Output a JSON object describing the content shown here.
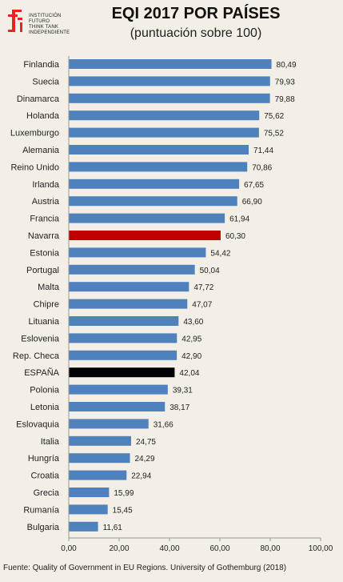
{
  "logo": {
    "text": "INSTITUCIÓN\nFUTURO\nTHINK TANK\nINDEPENDIENTE",
    "color": "#e5251e"
  },
  "header": {
    "title": "EQI 2017  POR PAÍSES",
    "subtitle": "(puntuación sobre 100)"
  },
  "footer": {
    "source": "Fuente: Quality of Government in EU Regions. University of Gothemburg (2018)"
  },
  "chart_data": {
    "type": "bar",
    "orientation": "horizontal",
    "title": "EQI 2017  POR PAÍSES",
    "subtitle": "(puntuación sobre 100)",
    "categories": [
      "Finlandia",
      "Suecia",
      "Dinamarca",
      "Holanda",
      "Luxemburgo",
      "Alemania",
      "Reino Unido",
      "Irlanda",
      "Austria",
      "Francia",
      "Navarra",
      "Estonia",
      "Portugal",
      "Malta",
      "Chipre",
      "Lituania",
      "Eslovenia",
      "Rep. Checa",
      "ESPAÑA",
      "Polonia",
      "Letonia",
      "Eslovaquia",
      "Italia",
      "Hungría",
      "Croatia",
      "Grecia",
      "Rumanía",
      "Bulgaria"
    ],
    "values": [
      80.49,
      79.93,
      79.88,
      75.62,
      75.52,
      71.44,
      70.86,
      67.65,
      66.9,
      61.94,
      60.3,
      54.42,
      50.04,
      47.72,
      47.07,
      43.6,
      42.95,
      42.9,
      42.04,
      39.31,
      38.17,
      31.66,
      24.75,
      24.29,
      22.94,
      15.99,
      15.45,
      11.61
    ],
    "value_labels": [
      "80,49",
      "79,93",
      "79,88",
      "75,62",
      "75,52",
      "71,44",
      "70,86",
      "67,65",
      "66,90",
      "61,94",
      "60,30",
      "54,42",
      "50,04",
      "47,72",
      "47,07",
      "43,60",
      "42,95",
      "42,90",
      "42,04",
      "39,31",
      "38,17",
      "31,66",
      "24,75",
      "24,29",
      "22,94",
      "15,99",
      "15,45",
      "11,61"
    ],
    "xlim": [
      0,
      100
    ],
    "xticks": [
      "0,00",
      "20,00",
      "40,00",
      "60,00",
      "80,00",
      "100,00"
    ],
    "grid": false,
    "colors": {
      "default": "#4f81bd",
      "Navarra": "#c00000",
      "ESPAÑA": "#000000"
    }
  }
}
